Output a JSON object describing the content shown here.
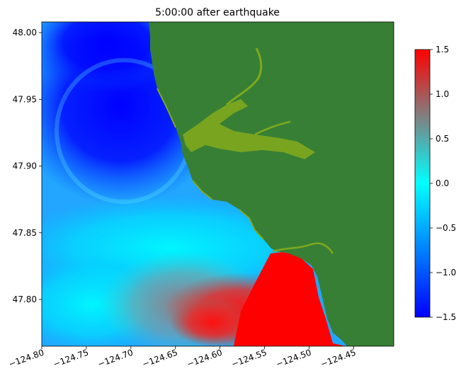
{
  "chart_data": {
    "type": "heatmap",
    "title": "5:00:00 after earthquake",
    "xlabel": "",
    "ylabel": "",
    "xlim": [
      -124.8,
      -124.405
    ],
    "ylim": [
      47.765,
      48.008
    ],
    "x_ticks": [
      {
        "value": -124.8,
        "label": "−124.80"
      },
      {
        "value": -124.75,
        "label": "−124.75"
      },
      {
        "value": -124.7,
        "label": "−124.70"
      },
      {
        "value": -124.65,
        "label": "−124.65"
      },
      {
        "value": -124.6,
        "label": "−124.60"
      },
      {
        "value": -124.55,
        "label": "−124.55"
      },
      {
        "value": -124.5,
        "label": "−124.50"
      },
      {
        "value": -124.45,
        "label": "−124.45"
      }
    ],
    "y_ticks": [
      {
        "value": 47.8,
        "label": "47.80"
      },
      {
        "value": 47.85,
        "label": "47.85"
      },
      {
        "value": 47.9,
        "label": "47.90"
      },
      {
        "value": 47.95,
        "label": "47.95"
      },
      {
        "value": 48.0,
        "label": "48.00"
      }
    ],
    "colorbar": {
      "range": [
        -1.5,
        1.5
      ],
      "ticks": [
        {
          "value": 1.5,
          "label": "1.5"
        },
        {
          "value": 1.0,
          "label": "1.0"
        },
        {
          "value": 0.5,
          "label": "0.5"
        },
        {
          "value": 0.0,
          "label": "0.0"
        },
        {
          "value": -0.5,
          "label": "−0.5"
        },
        {
          "value": -1.0,
          "label": "−1.0"
        },
        {
          "value": -1.5,
          "label": "−1.5"
        }
      ],
      "stops": [
        {
          "value": -1.5,
          "color": "#0000ff"
        },
        {
          "value": -0.75,
          "color": "#0080ff"
        },
        {
          "value": 0.0,
          "color": "#00ffff"
        },
        {
          "value": 0.75,
          "color": "#808080"
        },
        {
          "value": 1.5,
          "color": "#ff0000"
        }
      ]
    },
    "colors": {
      "land": "#367f35",
      "river": "#7fa81e",
      "deep_blue": "#0000ff",
      "cyan": "#00ffff",
      "gray": "#808080",
      "red": "#ff0000"
    }
  }
}
